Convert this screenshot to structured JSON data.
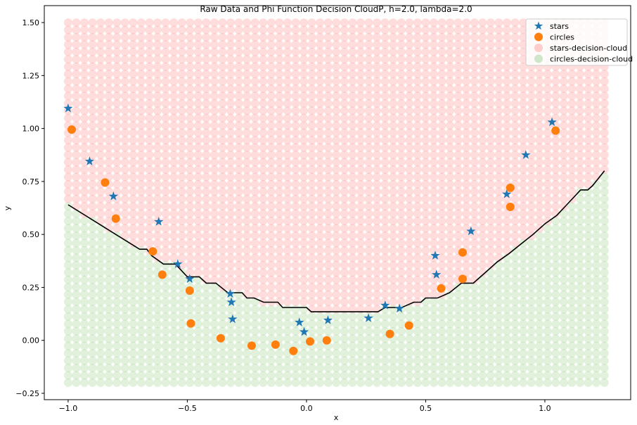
{
  "chart_data": {
    "type": "scatter",
    "title": "Raw Data and Phi Function Decision CloudP, h=2.0, lambda=2.0",
    "xlabel": "x",
    "ylabel": "y",
    "xlim": [
      -1.1,
      1.36
    ],
    "ylim": [
      -0.28,
      1.58
    ],
    "xticks": [
      -1.0,
      -0.5,
      0.0,
      0.5,
      1.0
    ],
    "xtick_labels": [
      "−1.0",
      "−0.5",
      "0.0",
      "0.5",
      "1.0"
    ],
    "yticks": [
      -0.25,
      0.0,
      0.25,
      0.5,
      0.75,
      1.0,
      1.25,
      1.5
    ],
    "ytick_labels": [
      "−0.25",
      "0.00",
      "0.25",
      "0.50",
      "0.75",
      "1.00",
      "1.25",
      "1.50"
    ],
    "grid": false,
    "legend_position": "top-right",
    "legend": [
      {
        "label": "stars",
        "marker": "star",
        "color": "#1f77b4"
      },
      {
        "label": "circles",
        "marker": "circle",
        "color": "#ff7f0e"
      },
      {
        "label": "stars-decision-cloud",
        "marker": "circle",
        "color": "#ffcccc"
      },
      {
        "label": "circles-decision-cloud",
        "marker": "circle",
        "color": "#cfe6c8"
      }
    ],
    "cloud": {
      "x_range": [
        -1.0,
        1.25
      ],
      "y_range": [
        -0.2,
        1.5
      ],
      "nx": 67,
      "ny": 50,
      "stars_color": "#ff9f9f",
      "circles_color": "#a9d79b",
      "alpha": 0.35
    },
    "boundary": {
      "color": "#000000",
      "x": [
        -1.0,
        -0.9,
        -0.8,
        -0.7,
        -0.67,
        -0.65,
        -0.6,
        -0.55,
        -0.5,
        -0.45,
        -0.42,
        -0.38,
        -0.33,
        -0.3,
        -0.27,
        -0.25,
        -0.22,
        -0.18,
        -0.12,
        -0.1,
        -0.05,
        0.0,
        0.02,
        0.05,
        0.1,
        0.15,
        0.2,
        0.25,
        0.3,
        0.33,
        0.36,
        0.4,
        0.45,
        0.48,
        0.5,
        0.55,
        0.6,
        0.65,
        0.7,
        0.75,
        0.8,
        0.85,
        0.9,
        0.95,
        1.0,
        1.05,
        1.1,
        1.15,
        1.18,
        1.2,
        1.25
      ],
      "y": [
        0.64,
        0.57,
        0.5,
        0.43,
        0.43,
        0.4,
        0.36,
        0.36,
        0.3,
        0.3,
        0.27,
        0.27,
        0.225,
        0.225,
        0.225,
        0.2,
        0.2,
        0.18,
        0.18,
        0.155,
        0.155,
        0.155,
        0.135,
        0.135,
        0.135,
        0.135,
        0.135,
        0.135,
        0.135,
        0.155,
        0.155,
        0.155,
        0.18,
        0.18,
        0.2,
        0.2,
        0.225,
        0.27,
        0.27,
        0.32,
        0.37,
        0.41,
        0.455,
        0.5,
        0.55,
        0.59,
        0.65,
        0.71,
        0.71,
        0.73,
        0.8
      ]
    },
    "series": [
      {
        "name": "stars",
        "marker": "star",
        "color": "#1f77b4",
        "points": [
          [
            -1.0,
            1.095
          ],
          [
            -0.91,
            0.845
          ],
          [
            -0.81,
            0.68
          ],
          [
            -0.62,
            0.56
          ],
          [
            -0.54,
            0.36
          ],
          [
            -0.49,
            0.29
          ],
          [
            -0.32,
            0.22
          ],
          [
            -0.315,
            0.18
          ],
          [
            -0.31,
            0.1
          ],
          [
            -0.03,
            0.085
          ],
          [
            -0.01,
            0.04
          ],
          [
            0.09,
            0.095
          ],
          [
            0.26,
            0.105
          ],
          [
            0.33,
            0.165
          ],
          [
            0.39,
            0.15
          ],
          [
            0.54,
            0.4
          ],
          [
            0.545,
            0.31
          ],
          [
            0.69,
            0.515
          ],
          [
            0.84,
            0.69
          ],
          [
            0.92,
            0.875
          ],
          [
            1.03,
            1.03
          ]
        ]
      },
      {
        "name": "circles",
        "marker": "circle",
        "color": "#ff7f0e",
        "points": [
          [
            -0.985,
            0.995
          ],
          [
            -0.845,
            0.745
          ],
          [
            -0.8,
            0.575
          ],
          [
            -0.645,
            0.42
          ],
          [
            -0.605,
            0.31
          ],
          [
            -0.49,
            0.235
          ],
          [
            -0.485,
            0.08
          ],
          [
            -0.36,
            0.01
          ],
          [
            -0.23,
            -0.025
          ],
          [
            -0.13,
            -0.02
          ],
          [
            -0.055,
            -0.05
          ],
          [
            0.015,
            -0.005
          ],
          [
            0.085,
            0.0
          ],
          [
            0.35,
            0.03
          ],
          [
            0.43,
            0.07
          ],
          [
            0.565,
            0.245
          ],
          [
            0.655,
            0.29
          ],
          [
            0.655,
            0.415
          ],
          [
            0.855,
            0.63
          ],
          [
            0.855,
            0.72
          ],
          [
            1.045,
            0.99
          ]
        ]
      }
    ]
  }
}
